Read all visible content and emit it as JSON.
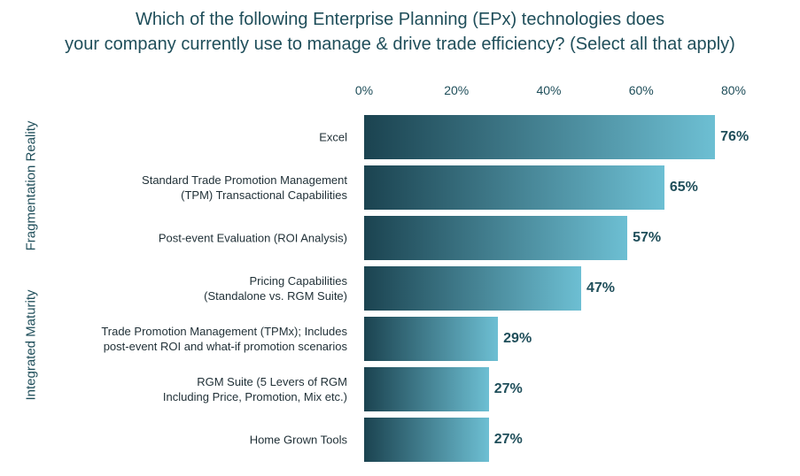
{
  "chart_data": {
    "type": "bar",
    "orientation": "horizontal",
    "title": "Which of the following Enterprise Planning (EPx) technologies does\nyour company currently use to manage & drive trade efficiency? (Select all that apply)",
    "categories": [
      "Excel",
      "Standard Trade Promotion Management\n(TPM) Transactional Capabilities",
      "Post-event Evaluation (ROI Analysis)",
      "Pricing Capabilities\n(Standalone vs. RGM Suite)",
      "Trade Promotion Management (TPMx); Includes\npost-event ROI and what-if promotion scenarios",
      "RGM Suite (5 Levers of RGM\nIncluding Price, Promotion, Mix etc.)",
      "Home Grown Tools"
    ],
    "values": [
      76,
      65,
      57,
      47,
      29,
      27,
      27
    ],
    "value_labels": [
      "76%",
      "65%",
      "57%",
      "47%",
      "29%",
      "27%",
      "27%"
    ],
    "gradient": [
      "#1b4350",
      "#6dbfd3"
    ],
    "xlim": [
      0,
      80
    ],
    "xticks": [
      {
        "value": 0,
        "label": "0%"
      },
      {
        "value": 20,
        "label": "20%"
      },
      {
        "value": 40,
        "label": "40%"
      },
      {
        "value": 60,
        "label": "60%"
      },
      {
        "value": 80,
        "label": "80%"
      }
    ],
    "group_labels": [
      "Fragmentation Reality",
      "Integrated Maturity"
    ]
  }
}
